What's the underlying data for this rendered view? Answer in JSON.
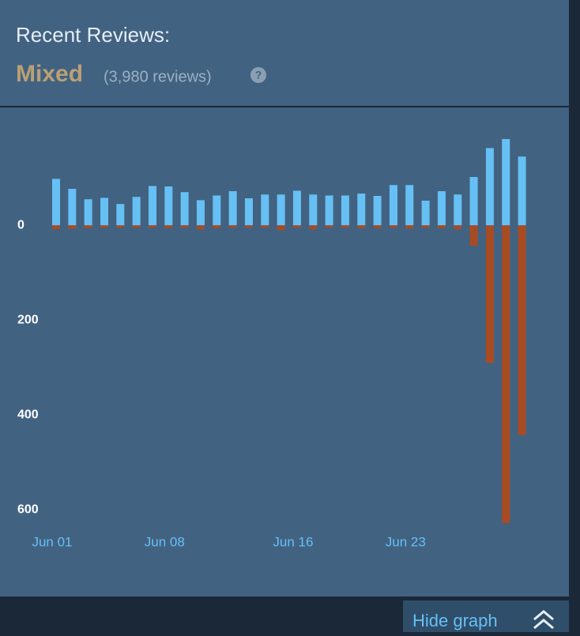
{
  "header": {
    "title": "Recent Reviews:",
    "rating": "Mixed",
    "count": "(3,980 reviews)",
    "help": "?"
  },
  "chart_data": {
    "type": "diverging-bar",
    "categories": [
      "Jun 01",
      null,
      null,
      null,
      null,
      null,
      null,
      "Jun 08",
      null,
      null,
      null,
      null,
      null,
      null,
      null,
      "Jun 16",
      null,
      null,
      null,
      null,
      null,
      null,
      "Jun 23",
      null,
      null,
      null,
      null,
      null,
      null,
      null
    ],
    "series": [
      {
        "name": "positive",
        "color": "#66c0f4",
        "values": [
          98,
          77,
          55,
          58,
          45,
          60,
          83,
          82,
          70,
          53,
          63,
          72,
          57,
          65,
          65,
          73,
          65,
          63,
          63,
          67,
          62,
          85,
          85,
          52,
          72,
          65,
          102,
          163,
          182,
          145
        ]
      },
      {
        "name": "negative",
        "color": "#a94b22",
        "values": [
          -8,
          -7,
          -6,
          -5,
          -5,
          -5,
          -5,
          -6,
          -5,
          -8,
          -6,
          -5,
          -5,
          -5,
          -10,
          -5,
          -8,
          -5,
          -5,
          -6,
          -6,
          -5,
          -7,
          -5,
          -6,
          -8,
          -43,
          -290,
          -628,
          -442
        ]
      }
    ],
    "ylim": [
      -633,
      242
    ],
    "yticks": [
      0,
      {
        "value": -200,
        "label": "200"
      },
      {
        "value": -400,
        "label": "400"
      },
      {
        "value": -600,
        "label": "600"
      }
    ]
  },
  "footer": {
    "button": "Hide graph"
  }
}
